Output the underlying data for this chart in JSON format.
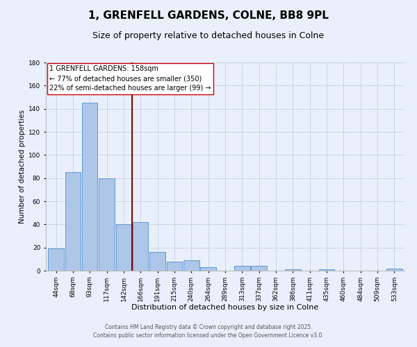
{
  "title": "1, GRENFELL GARDENS, COLNE, BB8 9PL",
  "subtitle": "Size of property relative to detached houses in Colne",
  "xlabel": "Distribution of detached houses by size in Colne",
  "ylabel": "Number of detached properties",
  "categories": [
    "44sqm",
    "68sqm",
    "93sqm",
    "117sqm",
    "142sqm",
    "166sqm",
    "191sqm",
    "215sqm",
    "240sqm",
    "264sqm",
    "289sqm",
    "313sqm",
    "337sqm",
    "362sqm",
    "386sqm",
    "411sqm",
    "435sqm",
    "460sqm",
    "484sqm",
    "509sqm",
    "533sqm"
  ],
  "values": [
    19,
    85,
    145,
    80,
    40,
    42,
    16,
    8,
    9,
    3,
    0,
    4,
    4,
    0,
    1,
    0,
    1,
    0,
    0,
    0,
    2
  ],
  "bar_color": "#aec6e8",
  "bar_edge_color": "#5b9bd5",
  "background_color": "#eaf0fb",
  "grid_color": "#c8d4e8",
  "vline_color": "#8b0000",
  "ylim": [
    0,
    180
  ],
  "yticks": [
    0,
    20,
    40,
    60,
    80,
    100,
    120,
    140,
    160,
    180
  ],
  "annotation_text_line1": "1 GRENFELL GARDENS: 158sqm",
  "annotation_text_line2": "← 77% of detached houses are smaller (350)",
  "annotation_text_line3": "22% of semi-detached houses are larger (99) →",
  "footer_line1": "Contains HM Land Registry data © Crown copyright and database right 2025.",
  "footer_line2": "Contains public sector information licensed under the Open Government Licence v3.0.",
  "title_fontsize": 11,
  "subtitle_fontsize": 9,
  "xlabel_fontsize": 8,
  "ylabel_fontsize": 7.5,
  "tick_fontsize": 6.5,
  "annotation_fontsize": 7,
  "footer_fontsize": 5.5
}
